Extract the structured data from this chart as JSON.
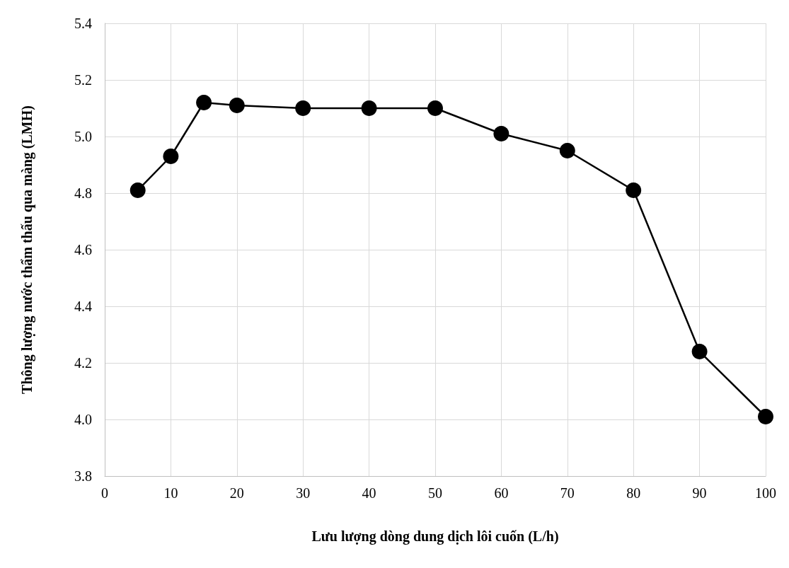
{
  "chart_data": {
    "type": "line",
    "xlabel": "Lưu lượng dòng dung dịch lôi cuốn (L/h)",
    "ylabel": "Thông lượng nước thẩm thấu qua màng (LMH)",
    "x": [
      5,
      10,
      15,
      20,
      30,
      40,
      50,
      60,
      70,
      80,
      90,
      100
    ],
    "series": [
      {
        "color": "#000000",
        "values": [
          4.81,
          4.93,
          5.12,
          5.11,
          5.1,
          5.1,
          5.1,
          5.01,
          4.95,
          4.81,
          4.24,
          4.01
        ]
      }
    ],
    "xlim": [
      0,
      100
    ],
    "xticks": [
      0,
      10,
      20,
      30,
      40,
      50,
      60,
      70,
      80,
      90,
      100
    ],
    "ylim": [
      3.8,
      5.4
    ],
    "yticks": [
      3.8,
      {
        "value": 4.0,
        "label": "4.0"
      },
      4.2,
      4.4,
      4.6,
      4.8,
      {
        "value": 5.0,
        "label": "5.0"
      },
      5.2,
      5.4
    ],
    "grid": true,
    "marker": "circle",
    "line_style": "solid"
  }
}
